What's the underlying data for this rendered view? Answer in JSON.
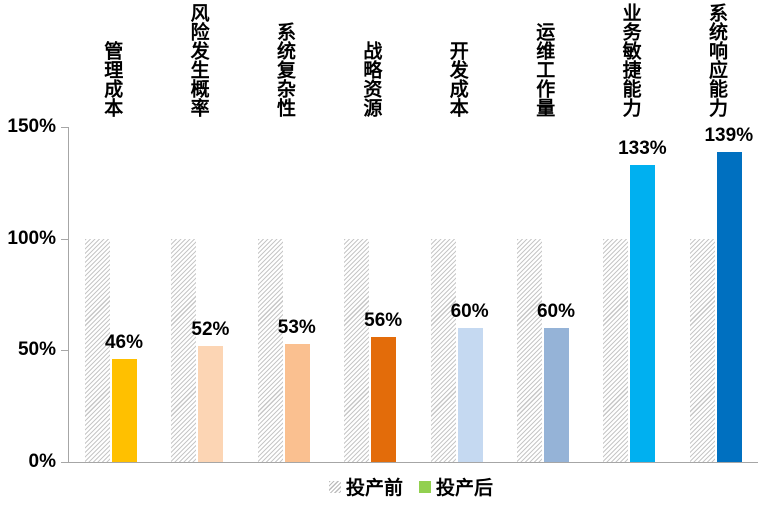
{
  "chart_data": {
    "type": "bar",
    "title": "",
    "categories": [
      "管理成本",
      "风险发生概率",
      "系统复杂性",
      "战略资源",
      "开发成本",
      "运维工作量",
      "业务敏捷能力",
      "系统响应能力"
    ],
    "series": [
      {
        "name": "投产前",
        "values": [
          100,
          100,
          100,
          100,
          100,
          100,
          100,
          100
        ],
        "style": "hatched",
        "hatch_color": "#C7C7C7",
        "labels_shown": false
      },
      {
        "name": "投产后",
        "values": [
          46,
          52,
          53,
          56,
          60,
          60,
          133,
          139
        ],
        "labels": [
          "46%",
          "52%",
          "53%",
          "56%",
          "60%",
          "60%",
          "133%",
          "139%"
        ],
        "colors": [
          "#FFC000",
          "#FCD5B4",
          "#FAC090",
          "#E36C0A",
          "#C5D9F1",
          "#95B3D7",
          "#00B0F0",
          "#0070C0"
        ],
        "labels_shown": true
      }
    ],
    "ylim": [
      0,
      150
    ],
    "yticks": [
      {
        "value": 0,
        "label": "0%"
      },
      {
        "value": 50,
        "label": "50%"
      },
      {
        "value": 100,
        "label": "100%"
      },
      {
        "value": 150,
        "label": "150%"
      }
    ],
    "grid": false,
    "axis_color": "#A6A6A6",
    "text_color": "#000000",
    "background": "#FFFFFF",
    "legend_position": "bottom",
    "legend": [
      {
        "label": "投产前",
        "swatch": "hatch"
      },
      {
        "label": "投产后",
        "swatch": "#92D050"
      }
    ]
  }
}
